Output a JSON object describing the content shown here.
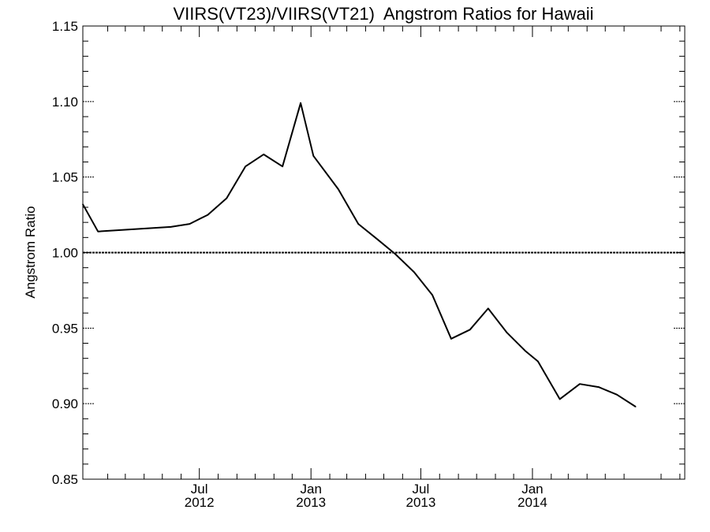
{
  "chart_data": {
    "type": "line",
    "title": "VIIRS(VT23)/VIIRS(VT21)  Angstrom Ratios for Hawaii",
    "xlabel": "",
    "ylabel": "Angstrom Ratio",
    "ylim": [
      0.85,
      1.15
    ],
    "xlim": [
      "2011-12-22",
      "2014-09-09"
    ],
    "y_ticks": [
      "0.85",
      "0.90",
      "0.95",
      "1.00",
      "1.05",
      "1.10",
      "1.15"
    ],
    "x_major_ticks": [
      {
        "date": "2012-07-01",
        "month": "Jul",
        "year": "2012"
      },
      {
        "date": "2013-01-01",
        "month": "Jan",
        "year": "2013"
      },
      {
        "date": "2013-07-01",
        "month": "Jul",
        "year": "2013"
      },
      {
        "date": "2014-01-01",
        "month": "Jan",
        "year": "2014"
      }
    ],
    "reference_line": 1.0,
    "grid": false,
    "series": [
      {
        "color": "#000000",
        "x": [
          "2011-12-22",
          "2012-01-16",
          "2012-05-15",
          "2012-06-15",
          "2012-07-15",
          "2012-08-15",
          "2012-09-15",
          "2012-10-15",
          "2012-11-15",
          "2012-12-15",
          "2013-01-05",
          "2013-02-15",
          "2013-03-20",
          "2013-04-20",
          "2013-05-20",
          "2013-06-20",
          "2013-07-20",
          "2013-08-20",
          "2013-09-20",
          "2013-10-20",
          "2013-11-20",
          "2013-12-20",
          "2014-01-10",
          "2014-02-15",
          "2014-03-20",
          "2014-04-20",
          "2014-05-20",
          "2014-06-20"
        ],
        "values": [
          1.032,
          1.014,
          1.017,
          1.019,
          1.025,
          1.036,
          1.057,
          1.065,
          1.057,
          1.099,
          1.064,
          1.042,
          1.019,
          1.009,
          0.999,
          0.987,
          0.972,
          0.943,
          0.949,
          0.963,
          0.947,
          0.935,
          0.928,
          0.903,
          0.913,
          0.911,
          0.906,
          0.898
        ]
      }
    ]
  }
}
